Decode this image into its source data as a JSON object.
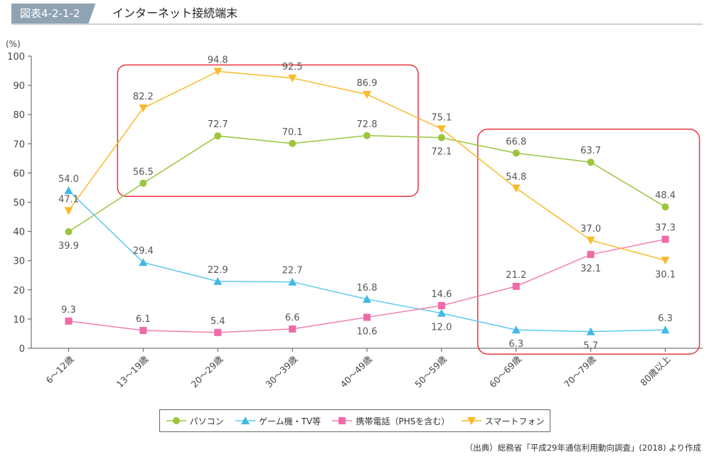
{
  "header": {
    "figure_number": "図表4-2-1-2",
    "title": "インターネット接続端末"
  },
  "source": "（出典）総務省「平成29年通信利用動向調査」(2018) より作成",
  "chart_data": {
    "type": "line",
    "unit_label": "(%)",
    "ylim": [
      0,
      100
    ],
    "yticks": [
      0,
      10,
      20,
      30,
      40,
      50,
      60,
      70,
      80,
      90,
      100
    ],
    "grid": false,
    "legend_position": "bottom",
    "categories": [
      "6～12歳",
      "13～19歳",
      "20～29歳",
      "30～39歳",
      "40～49歳",
      "50～59歳",
      "60～69歳",
      "70～79歳",
      "80歳以上"
    ],
    "series": [
      {
        "name": "パソコン",
        "color": "#9bc53d",
        "marker": "circle",
        "marker_color": "#9bc53d",
        "values": [
          39.9,
          56.5,
          72.7,
          70.1,
          72.8,
          72.1,
          66.8,
          63.7,
          48.4
        ]
      },
      {
        "name": "ゲーム機・TV等",
        "color": "#5bc8ee",
        "marker": "triangle-up",
        "marker_color": "#41b9e8",
        "values": [
          54.0,
          29.4,
          22.9,
          22.7,
          16.8,
          12.0,
          6.3,
          5.7,
          6.3
        ]
      },
      {
        "name": "携帯電話（PHSを含む）",
        "color": "#f080b0",
        "marker": "square",
        "marker_color": "#f06aa8",
        "values": [
          9.3,
          6.1,
          5.4,
          6.6,
          10.6,
          14.6,
          21.2,
          32.1,
          37.3
        ]
      },
      {
        "name": "スマートフォン",
        "color": "#f9b92b",
        "marker": "triangle-down",
        "marker_color": "#f9b92b",
        "values": [
          47.1,
          82.2,
          94.8,
          92.5,
          86.9,
          75.1,
          54.8,
          37.0,
          30.1
        ]
      }
    ],
    "highlight_color": "#e8343f"
  }
}
